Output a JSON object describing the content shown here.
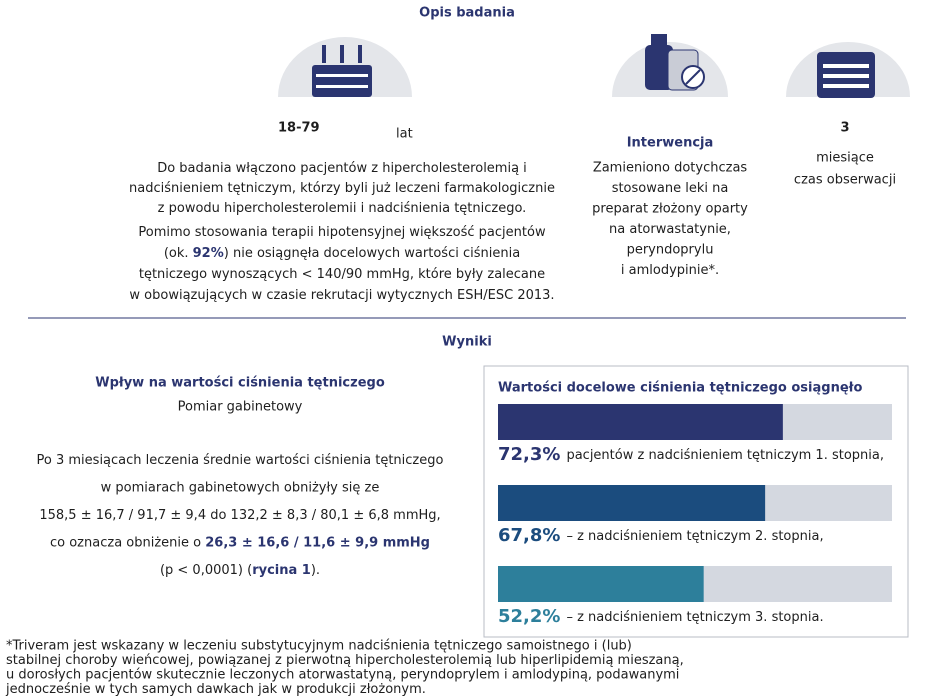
{
  "header": {
    "title": "Opis badania"
  },
  "age": {
    "range": "18-79",
    "unit": "lat",
    "paragraph1": [
      [
        "Do badania włączono pacjentów z hipercholesterolemią i"
      ],
      [
        "nadciśnieniem tętniczym, którzy byli już leczeni farmakologicznie"
      ],
      [
        "z powodu hipercholesterolemii i nadciśnienia tętniczego."
      ]
    ],
    "paragraph2": [
      [
        "Pomimo stosowania terapii hipotensyjnej większość pacjentów"
      ],
      [
        "(ok. ",
        "92%",
        ") nie osiągnęła docelowych wartości ciśnienia"
      ],
      [
        "tętniczego wynoszących < 140/90 mmHg, które były zalecane"
      ],
      [
        "w obowiązujących w czasie rekrutacji wytycznych ESH/ESC 2013."
      ]
    ]
  },
  "intervention": {
    "title": "Interwencja",
    "lines": [
      "Zamieniono dotychczas",
      "stosowane leki na",
      "preparat złożony oparty",
      "na atorwastatynie,",
      "peryndoprylu",
      "i amlodypinie*."
    ]
  },
  "duration": {
    "number": "3",
    "unit": "miesiące",
    "label": "czas obserwacji"
  },
  "results": {
    "title": "Wyniki",
    "left": {
      "heading": "Wpływ na wartości ciśnienia tętniczego",
      "subheading": "Pomiar gabinetowy",
      "lines": [
        [
          "Po 3 miesiącach leczenia średnie wartości ciśnienia tętniczego"
        ],
        [
          "w pomiarach gabinetowych obniżyły się ze"
        ],
        [
          "158,5 ± 16,7 / 91,7 ± 9,4 do 132,2 ± 8,3 / 80,1 ± 6,8 mmHg,"
        ],
        [
          "co oznacza obniżenie o ",
          "26,3 ± 16,6 / 11,6 ± 9,9 mmHg"
        ],
        [
          "(p < 0,0001) (",
          "rycina 1",
          ")."
        ]
      ]
    },
    "box": {
      "title": "Wartości docelowe ciśnienia tętniczego osiągnęło",
      "xlim": [
        0,
        100
      ],
      "items": [
        {
          "value": 72.3,
          "label": "72,3%",
          "text": "pacjentów z nadciśnieniem tętniczym 1. stopnia,",
          "color": "#2b3570"
        },
        {
          "value": 67.8,
          "label": "67,8%",
          "text": "– z nadciśnieniem tętniczym 2. stopnia,",
          "color": "#1b4c7e"
        },
        {
          "value": 52.2,
          "label": "52,2%",
          "text": "– z nadciśnieniem tętniczym 3. stopnia.",
          "color": "#2d7f9b"
        }
      ]
    }
  },
  "footnote": [
    "*Triveram jest wskazany w leczeniu substytucyjnym nadciśnienia tętniczego samoistnego i (lub)",
    "stabilnej choroby wieńcowej, powiązanej z pierwotną hipercholesterolemią lub hiperlipidemią mieszaną,",
    "u dorosłych pacjentów skutecznie leczonych atorwastatyną, peryndoprylem i amlodypiną, podawanymi",
    "jednocześnie w tych samych dawkach jak w produkcji złożonym."
  ]
}
